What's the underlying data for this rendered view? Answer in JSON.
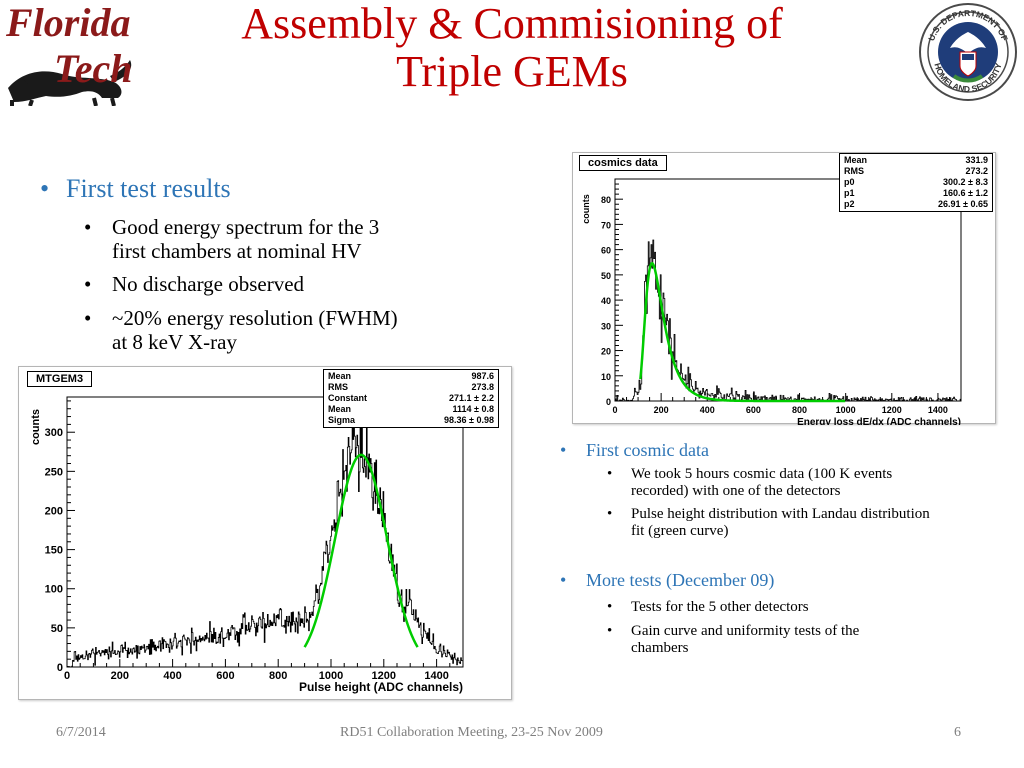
{
  "title": {
    "line1": "Assembly & Commisioning of",
    "line2": "Triple GEMs"
  },
  "logos": {
    "left": "Florida Tech",
    "right": "U.S. DEPARTMENT OF HOMELAND SECURITY"
  },
  "left_bullets": {
    "main": "First test results",
    "sub": [
      {
        "line1": "Good energy spectrum for the 3",
        "line2": "first chambers at nominal HV"
      },
      {
        "line1": "No discharge observed",
        "line2": ""
      },
      {
        "line1": "~20% energy resolution (FWHM)",
        "line2": "at 8 keV X-ray"
      }
    ]
  },
  "right_bullets": {
    "first": {
      "main": "First cosmic data",
      "sub": [
        {
          "line1": "We took 5 hours cosmic data (100 K events",
          "line2": "recorded) with one of the detectors"
        },
        {
          "line1": "Pulse height distribution with Landau distribution",
          "line2": "fit (green curve)"
        }
      ]
    },
    "second": {
      "main": "More tests (December 09)",
      "sub": [
        {
          "line1": "Tests for the 5 other detectors",
          "line2": ""
        },
        {
          "line1": "Gain curve and uniformity tests of the",
          "line2": "chambers"
        }
      ]
    }
  },
  "chart_data": [
    {
      "type": "histogram",
      "title": "cosmics data",
      "xlabel": "Energy loss dE/dx (ADC channels)",
      "ylabel": "counts",
      "xlim": [
        0,
        1500
      ],
      "ylim": [
        0,
        88
      ],
      "xticks": [
        "0",
        "200",
        "400",
        "600",
        "800",
        "1000",
        "1200",
        "1400"
      ],
      "yticks": [
        "0",
        "10",
        "20",
        "30",
        "40",
        "50",
        "60",
        "70",
        "80"
      ],
      "stats": [
        {
          "name": "Mean",
          "value": "331.9"
        },
        {
          "name": "RMS",
          "value": "273.2"
        },
        {
          "name": "p0",
          "value": "300.2 ± 8.3"
        },
        {
          "name": "p1",
          "value": "160.6 ± 1.2"
        },
        {
          "name": "p2",
          "value": "26.91 ± 0.65"
        }
      ],
      "fit": {
        "kind": "landau",
        "p0": 300.2,
        "p1": 160.6,
        "p2": 26.91,
        "color": "#00cc00"
      },
      "hist_color": "#000000"
    },
    {
      "type": "histogram",
      "title": "MTGEM3",
      "xlabel": "Pulse height (ADC channels)",
      "ylabel": "counts",
      "xlim": [
        0,
        1500
      ],
      "ylim": [
        0,
        345
      ],
      "xticks": [
        "0",
        "200",
        "400",
        "600",
        "800",
        "1000",
        "1200",
        "1400"
      ],
      "yticks": [
        "0",
        "50",
        "100",
        "150",
        "200",
        "250",
        "300"
      ],
      "stats": [
        {
          "name": "Mean",
          "value": "987.6"
        },
        {
          "name": "RMS",
          "value": "273.8"
        },
        {
          "name": "Constant",
          "value": "271.1 ± 2.2"
        },
        {
          "name": "Mean",
          "value": "1114 ± 0.8"
        },
        {
          "name": "Sigma",
          "value": "98.36 ± 0.98"
        }
      ],
      "fit": {
        "kind": "gauss",
        "constant": 271.1,
        "mean": 1114,
        "sigma": 98.36,
        "color": "#00cc00"
      },
      "hist_color": "#000000"
    }
  ],
  "footer": {
    "date": "6/7/2014",
    "meeting": "RD51 Collaboration Meeting, 23-25 Nov 2009",
    "page": "6"
  }
}
